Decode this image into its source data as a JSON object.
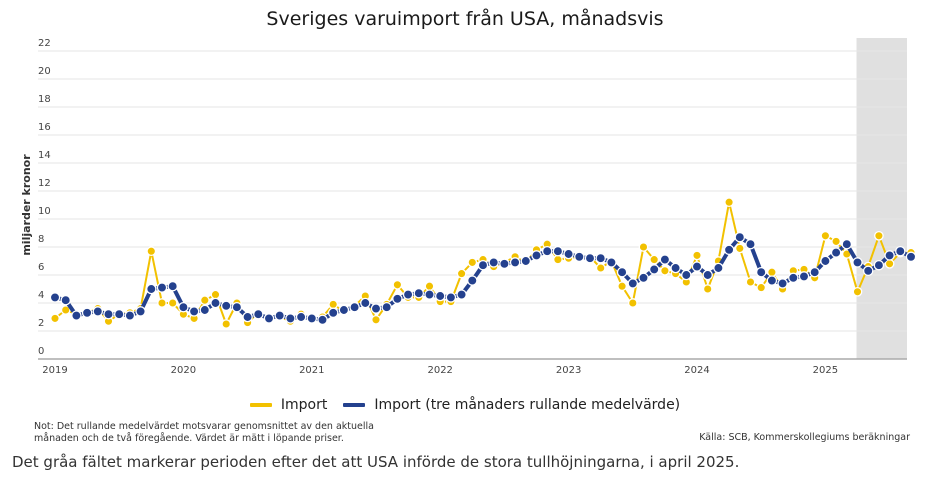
{
  "chart_data": {
    "type": "line",
    "title": "Sveriges varuimport från USA, månadsvis",
    "ylabel": "miljarder kronor",
    "xlabel": "",
    "ylim": [
      0,
      22
    ],
    "yticks": [
      0,
      2,
      4,
      6,
      8,
      10,
      12,
      14,
      16,
      18,
      20,
      22
    ],
    "xtick_labels": [
      "2019",
      "2020",
      "2021",
      "2022",
      "2023",
      "2024",
      "2025"
    ],
    "grid": true,
    "legend_position": "bottom-center",
    "start": "2019-01",
    "shaded_region": {
      "from": "2025-04",
      "to": "2025-09",
      "color": "#E0E0E0"
    },
    "series": [
      {
        "name": "Import",
        "color": "#F2C100",
        "values": [
          2.9,
          3.5,
          3.2,
          3.3,
          3.6,
          2.7,
          3.2,
          3.3,
          3.6,
          7.7,
          4.0,
          4.0,
          3.2,
          2.9,
          4.2,
          4.6,
          2.5,
          4.0,
          2.6,
          3.3,
          2.9,
          3.0,
          2.7,
          3.2,
          2.8,
          3.0,
          3.9,
          3.4,
          3.8,
          4.5,
          2.8,
          3.9,
          5.3,
          4.4,
          4.4,
          5.2,
          4.1,
          4.1,
          6.1,
          6.9,
          7.1,
          6.6,
          6.9,
          7.3,
          6.9,
          7.8,
          8.2,
          7.1,
          7.2,
          7.3,
          7.3,
          6.5,
          7.0,
          5.2,
          4.0,
          8.0,
          7.1,
          6.3,
          6.1,
          5.5,
          7.4,
          5.0,
          7.0,
          11.2,
          7.9,
          5.5,
          5.1,
          6.2,
          5.0,
          6.3,
          6.4,
          5.8,
          8.8,
          8.4,
          7.5,
          4.8,
          6.6,
          8.8,
          6.8,
          7.6,
          7.6
        ]
      },
      {
        "name": "Import (tre månaders rullande medelvärde)",
        "color": "#24418E",
        "values": [
          4.4,
          4.2,
          3.1,
          3.3,
          3.4,
          3.2,
          3.2,
          3.1,
          3.4,
          5.0,
          5.1,
          5.2,
          3.7,
          3.4,
          3.5,
          4.0,
          3.8,
          3.7,
          3.0,
          3.2,
          2.9,
          3.1,
          2.9,
          3.0,
          2.9,
          2.8,
          3.3,
          3.5,
          3.7,
          4.0,
          3.6,
          3.7,
          4.3,
          4.6,
          4.7,
          4.6,
          4.5,
          4.4,
          4.6,
          5.6,
          6.7,
          6.9,
          6.8,
          6.9,
          7.0,
          7.4,
          7.7,
          7.7,
          7.5,
          7.3,
          7.2,
          7.2,
          6.9,
          6.2,
          5.4,
          5.8,
          6.4,
          7.1,
          6.5,
          6.0,
          6.6,
          6.0,
          6.5,
          7.8,
          8.7,
          8.2,
          6.2,
          5.6,
          5.4,
          5.8,
          5.9,
          6.2,
          7.0,
          7.6,
          8.2,
          6.9,
          6.3,
          6.7,
          7.4,
          7.7,
          7.3
        ]
      }
    ]
  },
  "legend": {
    "items": [
      {
        "label": "Import",
        "color": "#F2C100"
      },
      {
        "label": "Import (tre månaders rullande medelvärde)",
        "color": "#24418E"
      }
    ]
  },
  "footer": {
    "note_line1": "Not: Det rullande medelvärdet motsvarar genomsnittet av den aktuella",
    "note_line2": "månaden och de två föregående. Värdet är mätt i löpande priser.",
    "source": "Källa: SCB, Kommerskollegiums beräkningar",
    "caption": "Det gråa fältet markerar perioden efter det att USA införde de stora tullhöjningarna, i april 2025."
  }
}
